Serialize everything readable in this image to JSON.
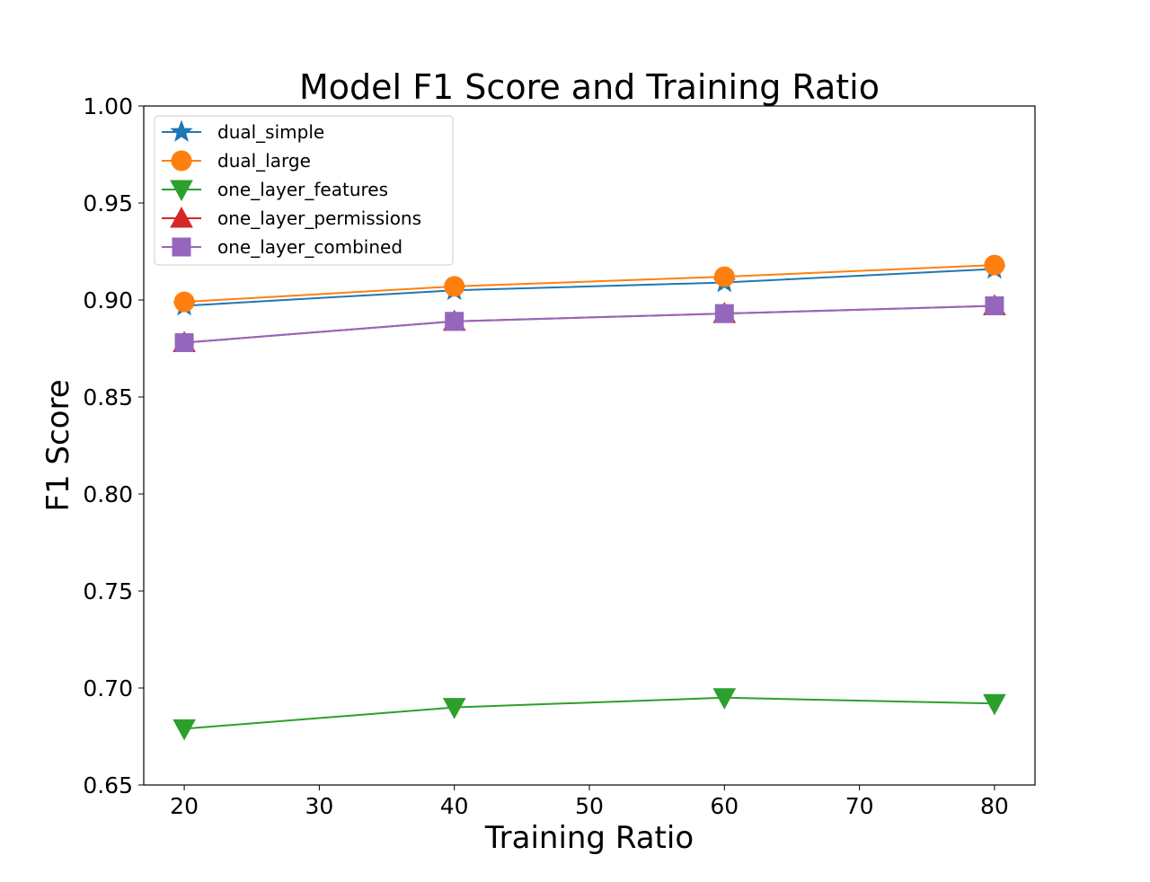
{
  "chart_data": {
    "type": "line",
    "title": "Model F1 Score and Training Ratio",
    "xlabel": "Training Ratio",
    "ylabel": "F1 Score",
    "x": [
      20,
      40,
      60,
      80
    ],
    "xlim": [
      17,
      83
    ],
    "ylim": [
      0.65,
      1.0
    ],
    "xticks": [
      "20",
      "30",
      "40",
      "50",
      "60",
      "70",
      "80"
    ],
    "yticks": [
      "0.65",
      "0.70",
      "0.75",
      "0.80",
      "0.85",
      "0.90",
      "0.95",
      "1.00"
    ],
    "grid": false,
    "legend_position": "top-left",
    "series": [
      {
        "name": "dual_simple",
        "color": "#1f77b4",
        "marker": "star",
        "values": [
          0.897,
          0.905,
          0.909,
          0.916
        ]
      },
      {
        "name": "dual_large",
        "color": "#ff7f0e",
        "marker": "circle",
        "values": [
          0.899,
          0.907,
          0.912,
          0.918
        ]
      },
      {
        "name": "one_layer_features",
        "color": "#2ca02c",
        "marker": "triangle-down",
        "values": [
          0.679,
          0.69,
          0.695,
          0.692
        ]
      },
      {
        "name": "one_layer_permissions",
        "color": "#d62728",
        "marker": "triangle-up",
        "values": [
          0.878,
          0.889,
          0.893,
          0.897
        ]
      },
      {
        "name": "one_layer_combined",
        "color": "#9467bd",
        "marker": "square",
        "values": [
          0.878,
          0.889,
          0.893,
          0.897
        ]
      }
    ]
  }
}
